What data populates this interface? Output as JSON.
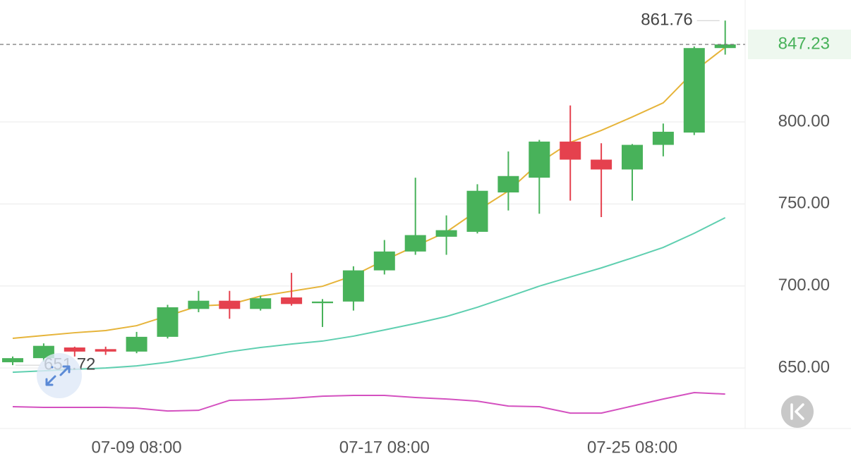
{
  "chart_data": {
    "type": "candlestick",
    "categories": [
      null,
      null,
      null,
      null,
      "07-09 08:00",
      null,
      null,
      null,
      null,
      null,
      null,
      null,
      "07-17 08:00",
      null,
      null,
      null,
      null,
      null,
      null,
      null,
      "07-25 08:00",
      null,
      null,
      null
    ],
    "open": [
      653.5,
      656,
      662.5,
      661.5,
      660,
      669,
      686,
      691,
      686,
      693,
      689.5,
      690.5,
      709.5,
      721,
      730,
      733,
      757,
      766,
      788,
      777,
      771,
      786,
      793.5,
      845
    ],
    "high": [
      657,
      665,
      663,
      663,
      672,
      688.5,
      697,
      697,
      694,
      708,
      692,
      712,
      728,
      766,
      743,
      762,
      782,
      789,
      810,
      787,
      786.5,
      799,
      846,
      861.76
    ],
    "low": [
      651.72,
      654,
      657,
      658,
      659,
      668,
      684,
      680,
      685,
      688,
      675,
      685,
      707,
      719,
      719,
      732,
      746,
      744,
      752,
      742,
      752,
      779,
      792,
      841
    ],
    "close": [
      656,
      663.5,
      660,
      660,
      669,
      687,
      691,
      686,
      692.5,
      689,
      690.5,
      709.5,
      721,
      731,
      734,
      758,
      767,
      788,
      777,
      771,
      786,
      794,
      845,
      847.23
    ],
    "up_color": "#48b25a",
    "down_color": "#e5414e",
    "lines": [
      {
        "color": "#e6b43a",
        "values": [
          668.1,
          669.8,
          671.5,
          672.8,
          675.8,
          681.8,
          687.8,
          688.7,
          693.8,
          696.8,
          699.8,
          706.3,
          715.7,
          724.3,
          732.9,
          745.9,
          757.9,
          775.1,
          787.5,
          794.8,
          803.0,
          811.6,
          830.9,
          845.5
        ]
      },
      {
        "color": "#5fcfb0",
        "values": [
          647.4,
          648.3,
          649.2,
          650.0,
          651.3,
          653.5,
          656.5,
          659.9,
          662.5,
          664.6,
          666.4,
          669.4,
          673.2,
          677.1,
          681.4,
          687.0,
          693.4,
          699.9,
          705.5,
          711.0,
          717.1,
          723.5,
          732.1,
          741.6
        ]
      },
      {
        "color": "#d451c0",
        "values": [
          626.4,
          626.0,
          626.0,
          626.0,
          625.5,
          623.8,
          624.2,
          630.3,
          630.7,
          631.5,
          632.8,
          633.3,
          633.3,
          632.0,
          631.1,
          629.8,
          626.8,
          626.4,
          622.5,
          622.5,
          626.8,
          631.1,
          635.0,
          634.1
        ]
      }
    ],
    "ylim": [
      613.1,
      874.3
    ],
    "yticks": [
      {
        "value": 650,
        "label": "650.00"
      },
      {
        "value": 700,
        "label": "700.00"
      },
      {
        "value": 750,
        "label": "750.00"
      },
      {
        "value": 800,
        "label": "800.00"
      }
    ],
    "grid": true
  }
}
